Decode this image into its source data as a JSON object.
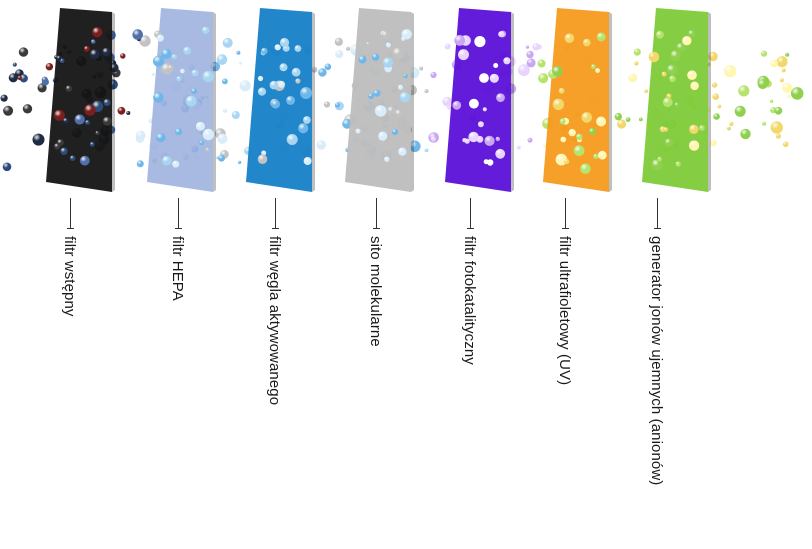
{
  "diagram": {
    "stages": [
      {
        "id": "pre",
        "label": "filtr wstępny",
        "color": "#141414"
      },
      {
        "id": "hepa",
        "label": "filtr HEPA",
        "color": "#9aaedd"
      },
      {
        "id": "carbon",
        "label": "filtr węgla aktywowanego",
        "color": "#1680c8"
      },
      {
        "id": "sieve",
        "label": "sito molekularne",
        "color": "#bdbdbd"
      },
      {
        "id": "photo",
        "label": "filtr fotokatalityczny",
        "color": "#5a10d8"
      },
      {
        "id": "uv",
        "label": "filtr ultrafioletowy (UV)",
        "color": "#f59a1e"
      },
      {
        "id": "ion",
        "label": "generator jonów ujemnych (anionów)",
        "color": "#7ecb3a"
      }
    ],
    "particle_colors": {
      "dirty": [
        "#1f2a44",
        "#2d4c7a",
        "#7a1e1e",
        "#3a3a3a",
        "#4f6fa8"
      ],
      "mid": [
        "#6fb7e8",
        "#a8d6f2",
        "#d8ecfa",
        "#c2c2c2"
      ],
      "violet": [
        "#c9a6f2",
        "#e8d4ff",
        "#ffffff"
      ],
      "clean": [
        "#f2d86a",
        "#b6e36b",
        "#8fd14f",
        "#fff6b0"
      ]
    }
  }
}
